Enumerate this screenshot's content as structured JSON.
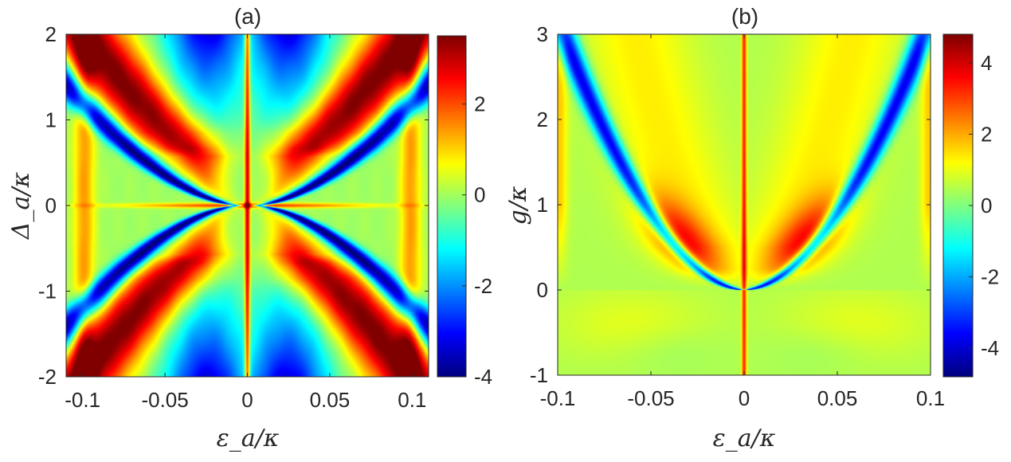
{
  "chart_data": [
    {
      "panel": "a",
      "type": "heatmap",
      "title": "(a)",
      "xlabel": "ε_a/κ",
      "ylabel": "Δ_a/κ",
      "xlim": [
        -0.11,
        0.11
      ],
      "ylim": [
        -2,
        2
      ],
      "x_ticks": [
        -0.1,
        -0.05,
        0,
        0.05,
        0.1
      ],
      "x_tick_labels": [
        "-0.1",
        "-0.05",
        "0",
        "0.05",
        "0.1"
      ],
      "y_ticks": [
        2,
        1,
        0,
        -1,
        -2
      ],
      "y_tick_labels": [
        "2",
        "1",
        "0",
        "-1",
        "-2"
      ],
      "colorbar": {
        "colormap": "jet",
        "clim": [
          -4,
          3.5
        ],
        "ticks": [
          2,
          0,
          -2,
          -4
        ],
        "tick_labels": [
          "2",
          "0",
          "-2",
          "-4"
        ]
      },
      "features": {
        "vertical_line_x": 0,
        "horizontal_line_y": 0,
        "blue_ridge": "x ≈ ±(0.0042 + 0.0855·|Δ|^0.6)",
        "red_band_offset": 0.035,
        "outer_edge_x": 0.098
      }
    },
    {
      "panel": "b",
      "type": "heatmap",
      "title": "(b)",
      "xlabel": "ε_a/κ",
      "ylabel": "g/κ",
      "xlim": [
        -0.1,
        0.1
      ],
      "ylim": [
        -1,
        3
      ],
      "x_ticks": [
        -0.1,
        -0.05,
        0,
        0.05,
        0.1
      ],
      "x_tick_labels": [
        "-0.1",
        "-0.05",
        "0",
        "0.05",
        "0.1"
      ],
      "y_ticks": [
        3,
        2,
        1,
        0,
        -1
      ],
      "y_tick_labels": [
        "3",
        "2",
        "1",
        "0",
        "-1"
      ],
      "colorbar": {
        "colormap": "jet",
        "clim": [
          -4.8,
          4.8
        ],
        "ticks": [
          4,
          2,
          0,
          -2,
          -4
        ],
        "tick_labels": [
          "4",
          "2",
          "0",
          "-2",
          "-4"
        ]
      },
      "features": {
        "vertical_line_x": 0,
        "blue_ridge": "x ≈ ±(0.097·(g/3)^0.55)",
        "orange_lobe_peak_g": 0.6,
        "outer_edge_x": 0.098
      }
    }
  ]
}
